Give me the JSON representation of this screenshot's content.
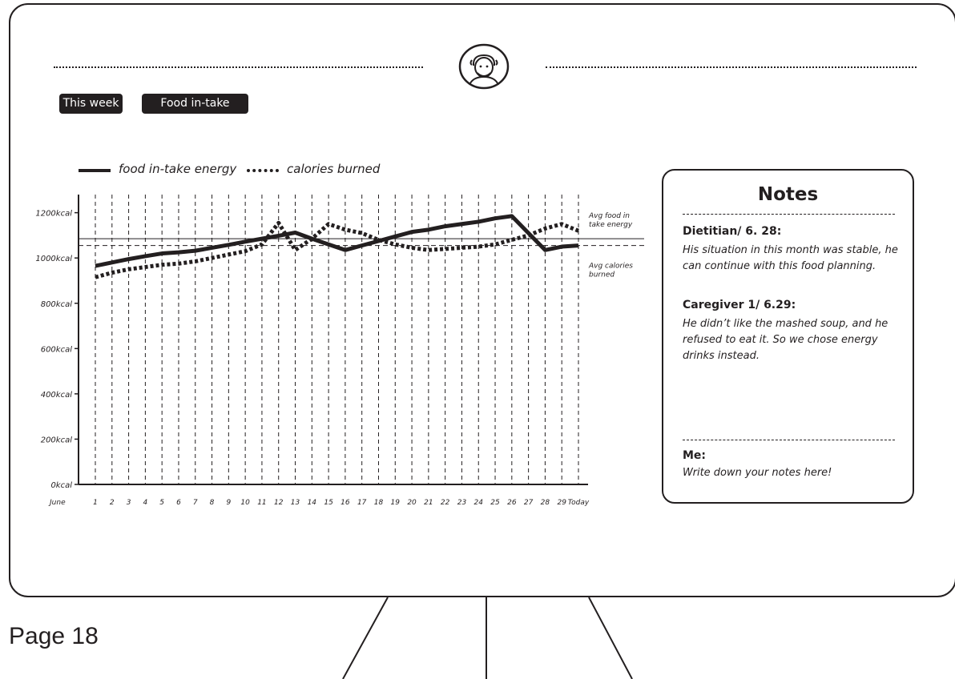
{
  "page": {
    "label": "Page 18"
  },
  "header": {
    "avatar_icon": "elderly-person-icon"
  },
  "filters": {
    "period_label": "This week",
    "metric_label": "Food in-take"
  },
  "legend": {
    "solid_label": "food in-take energy",
    "dotted_label": "calories burned"
  },
  "chart_data": {
    "type": "line",
    "title": "",
    "xlabel": "",
    "ylabel": "",
    "x_prefix": "June",
    "categories": [
      "1",
      "2",
      "3",
      "4",
      "5",
      "6",
      "7",
      "8",
      "9",
      "10",
      "11",
      "12",
      "13",
      "14",
      "15",
      "16",
      "17",
      "18",
      "19",
      "20",
      "21",
      "22",
      "23",
      "24",
      "25",
      "26",
      "27",
      "28",
      "29",
      "Today"
    ],
    "y_ticks": [
      "0kcal",
      "200kcal",
      "400kcal",
      "600kcal",
      "800kcal",
      "1000kcal",
      "1200kcal"
    ],
    "y_tick_values": [
      0,
      200,
      400,
      600,
      800,
      1000,
      1200
    ],
    "ylim": [
      0,
      1280
    ],
    "grid": "vertical dashed",
    "series": [
      {
        "name": "food in-take energy",
        "style": "solid",
        "values": [
          965,
          980,
          995,
          1008,
          1020,
          1025,
          1032,
          1045,
          1058,
          1072,
          1085,
          1098,
          1112,
          1085,
          1060,
          1035,
          1055,
          1075,
          1095,
          1115,
          1125,
          1140,
          1150,
          1160,
          1175,
          1185,
          1110,
          1035,
          1050,
          1055
        ]
      },
      {
        "name": "calories burned",
        "style": "dotted",
        "values": [
          915,
          935,
          950,
          960,
          970,
          975,
          985,
          1000,
          1015,
          1030,
          1060,
          1155,
          1035,
          1085,
          1150,
          1125,
          1110,
          1080,
          1060,
          1045,
          1035,
          1040,
          1045,
          1050,
          1060,
          1080,
          1100,
          1130,
          1150,
          1120
        ]
      }
    ],
    "reference_lines": [
      {
        "label": "Avg food in take energy",
        "value": 1085,
        "style": "solid"
      },
      {
        "label": "Avg calories burned",
        "value": 1055,
        "style": "dashed"
      }
    ]
  },
  "notes": {
    "title": "Notes",
    "entries": [
      {
        "author": "Dietitian/ 6. 28:",
        "text": "His situation in this month was stable, he can continue with this food planning."
      },
      {
        "author": "Caregiver 1/ 6.29:",
        "text": "He didn’t like the mashed soup, and he refused to eat it. So we chose energy drinks instead."
      }
    ],
    "me": {
      "author": "Me:",
      "placeholder": "Write down your notes here!"
    }
  }
}
